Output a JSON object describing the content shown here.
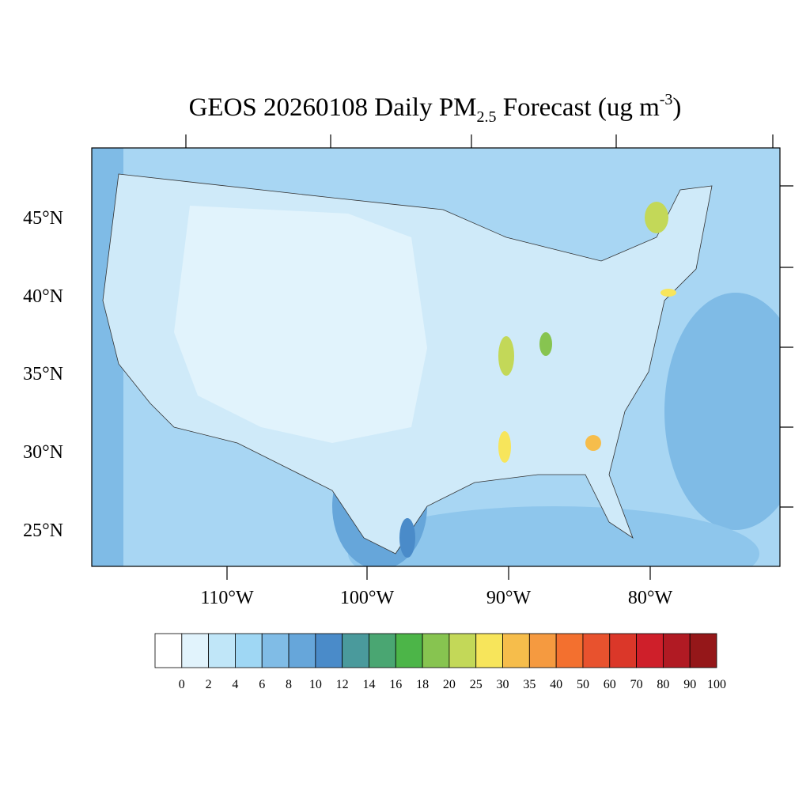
{
  "title": {
    "main": "GEOS 20260108 Daily PM",
    "sub": "2.5",
    "mid": " Forecast (ug m",
    "sup": "-3",
    "end": ")"
  },
  "map": {
    "lat_labels": [
      "45°N",
      "40°N",
      "35°N",
      "30°N",
      "25°N"
    ],
    "lon_labels": [
      "110°W",
      "100°W",
      "90°W",
      "80°W"
    ]
  },
  "colorbar": {
    "colors": [
      "#ffffff",
      "#e1f3fc",
      "#c0e6f8",
      "#9fd7f4",
      "#80bce6",
      "#66a6da",
      "#4a8bc9",
      "#4a9a9c",
      "#4aa672",
      "#4cb548",
      "#87c450",
      "#c3d858",
      "#f7e55b",
      "#f6bd4b",
      "#f59a40",
      "#f3702f",
      "#e8522e",
      "#db3729",
      "#cf1f2a",
      "#b11a23",
      "#951719"
    ],
    "labels": [
      "0",
      "2",
      "4",
      "6",
      "8",
      "10",
      "12",
      "14",
      "16",
      "18",
      "20",
      "25",
      "30",
      "35",
      "40",
      "50",
      "60",
      "70",
      "80",
      "90",
      "100"
    ]
  }
}
